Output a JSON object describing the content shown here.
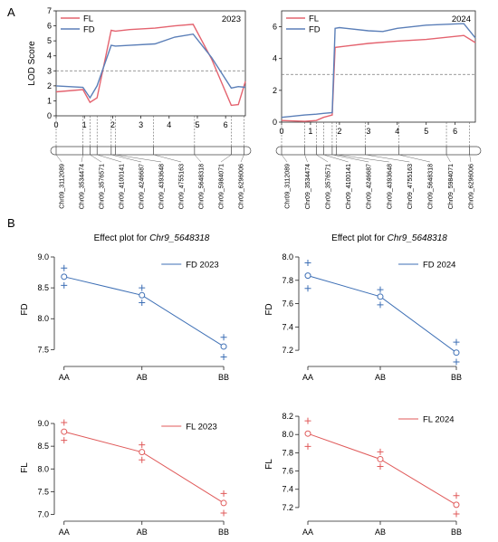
{
  "panel_labels": [
    "A",
    "B"
  ],
  "chart_data": [
    {
      "id": "lod2023",
      "type": "line",
      "year_label": "2023",
      "ylabel": "LOD Score",
      "ylim": [
        0,
        7
      ],
      "yticks": [
        0,
        1,
        2,
        3,
        4,
        5,
        6,
        7
      ],
      "xlim": [
        0,
        6.7
      ],
      "xticks": [
        0,
        1,
        2,
        3,
        4,
        5,
        6
      ],
      "threshold": 3,
      "series": [
        {
          "name": "FL",
          "color": "#e4636f",
          "x": [
            0,
            0.95,
            1.2,
            1.45,
            1.95,
            2.1,
            2.6,
            3.5,
            4.2,
            4.85,
            5.5,
            6.2,
            6.45,
            6.7
          ],
          "y": [
            1.6,
            1.75,
            0.9,
            1.2,
            5.7,
            5.65,
            5.75,
            5.85,
            6.0,
            6.1,
            3.8,
            0.7,
            0.75,
            2.3
          ]
        },
        {
          "name": "FD",
          "color": "#5b7fb8",
          "x": [
            0,
            0.95,
            1.2,
            1.45,
            1.95,
            2.1,
            2.6,
            3.5,
            4.2,
            4.85,
            5.5,
            6.2,
            6.45,
            6.7
          ],
          "y": [
            2.0,
            1.9,
            1.2,
            2.0,
            4.7,
            4.65,
            4.7,
            4.8,
            5.25,
            5.45,
            3.9,
            1.85,
            1.95,
            1.9
          ]
        }
      ],
      "markers": [
        {
          "label": "Chr09_3112089",
          "pos": 0
        },
        {
          "label": "Chr09_3534474",
          "pos": 0.95
        },
        {
          "label": "Chr09_3576571",
          "pos": 1.2
        },
        {
          "label": "Chr09_4100141",
          "pos": 1.45
        },
        {
          "label": "Chr09_4246687",
          "pos": 1.95
        },
        {
          "label": "Chr09_4393648",
          "pos": 2.1
        },
        {
          "label": "Chr09_4755163",
          "pos": 3.45
        },
        {
          "label": "Chr09_5648318",
          "pos": 4.9
        },
        {
          "label": "Chr09_5984071",
          "pos": 6.2
        },
        {
          "label": "Chr09_6296006",
          "pos": 6.65
        }
      ]
    },
    {
      "id": "lod2024",
      "type": "line",
      "year_label": "2024",
      "ylim": [
        0,
        7
      ],
      "yticks": [
        0,
        2,
        4,
        6
      ],
      "xlim": [
        0,
        6.7
      ],
      "xticks": [
        0,
        1,
        2,
        3,
        4,
        5,
        6
      ],
      "threshold": 3,
      "series": [
        {
          "name": "FL",
          "color": "#e4636f",
          "x": [
            0,
            0.8,
            1.2,
            1.45,
            1.75,
            1.85,
            3.0,
            4.0,
            5.0,
            6.3,
            6.7
          ],
          "y": [
            0.1,
            0.05,
            0.1,
            0.3,
            0.45,
            4.7,
            4.95,
            5.1,
            5.2,
            5.45,
            5.0
          ]
        },
        {
          "name": "FD",
          "color": "#5b7fb8",
          "x": [
            0,
            0.8,
            1.2,
            1.45,
            1.75,
            1.85,
            2.0,
            3.0,
            3.5,
            4.0,
            5.0,
            6.3,
            6.7
          ],
          "y": [
            0.3,
            0.45,
            0.5,
            0.55,
            0.6,
            5.9,
            5.95,
            5.75,
            5.7,
            5.9,
            6.1,
            6.2,
            5.3
          ]
        }
      ],
      "markers": [
        {
          "label": "Chr09_3112089",
          "pos": 0
        },
        {
          "label": "Chr09_3534474",
          "pos": 0.8
        },
        {
          "label": "Chr09_3576571",
          "pos": 1.2
        },
        {
          "label": "Chr09_4100141",
          "pos": 1.45
        },
        {
          "label": "Chr09_4246687",
          "pos": 1.75
        },
        {
          "label": "Chr09_4393648",
          "pos": 1.9
        },
        {
          "label": "Chr09_4755163",
          "pos": 2.9
        },
        {
          "label": "Chr09_5648318",
          "pos": 4.05
        },
        {
          "label": "Chr09_5984071",
          "pos": 5.7
        },
        {
          "label": "Chr09_6296006",
          "pos": 6.5
        }
      ]
    },
    {
      "id": "eff_fd2023",
      "type": "scatter",
      "title_prefix": "Effect plot for ",
      "title_marker": "Chr9_5648318",
      "legend": "FD 2023",
      "color": "#3d6fb5",
      "ylabel": "FD",
      "ylim": [
        7.3,
        9.0
      ],
      "yticks": [
        "7.5",
        "8.0",
        "8.5",
        "9.0"
      ],
      "categories": [
        "AA",
        "AB",
        "BB"
      ],
      "means": [
        8.68,
        8.38,
        7.55
      ],
      "upper": [
        8.82,
        8.5,
        7.7
      ],
      "lower": [
        8.54,
        8.26,
        7.38
      ]
    },
    {
      "id": "eff_fd2024",
      "type": "scatter",
      "title_prefix": "Effect plot for ",
      "title_marker": "Chr9_5648318",
      "legend": "FD 2024",
      "color": "#3d6fb5",
      "ylabel": "FD",
      "ylim": [
        7.1,
        8.0
      ],
      "yticks": [
        "7.2",
        "7.4",
        "7.6",
        "7.8",
        "8.0"
      ],
      "categories": [
        "AA",
        "AB",
        "BB"
      ],
      "means": [
        7.84,
        7.66,
        7.18
      ],
      "upper": [
        7.95,
        7.72,
        7.27
      ],
      "lower": [
        7.73,
        7.59,
        7.1
      ]
    },
    {
      "id": "eff_fl2023",
      "type": "scatter",
      "legend": "FL 2023",
      "color": "#e05a5a",
      "ylabel": "FL",
      "ylim": [
        6.95,
        9.1
      ],
      "yticks": [
        "7.0",
        "7.5",
        "8.0",
        "8.5",
        "9.0"
      ],
      "categories": [
        "AA",
        "AB",
        "BB"
      ],
      "means": [
        8.82,
        8.37,
        7.25
      ],
      "upper": [
        9.02,
        8.53,
        7.46
      ],
      "lower": [
        8.63,
        8.2,
        7.03
      ]
    },
    {
      "id": "eff_fl2024",
      "type": "scatter",
      "legend": "FL 2024",
      "color": "#e05a5a",
      "ylabel": "FL",
      "ylim": [
        7.1,
        8.25
      ],
      "yticks": [
        "7.2",
        "7.4",
        "7.6",
        "7.8",
        "8.0",
        "8.2"
      ],
      "categories": [
        "AA",
        "AB",
        "BB"
      ],
      "means": [
        8.01,
        7.73,
        7.23
      ],
      "upper": [
        8.15,
        7.81,
        7.33
      ],
      "lower": [
        7.87,
        7.65,
        7.13
      ]
    }
  ]
}
